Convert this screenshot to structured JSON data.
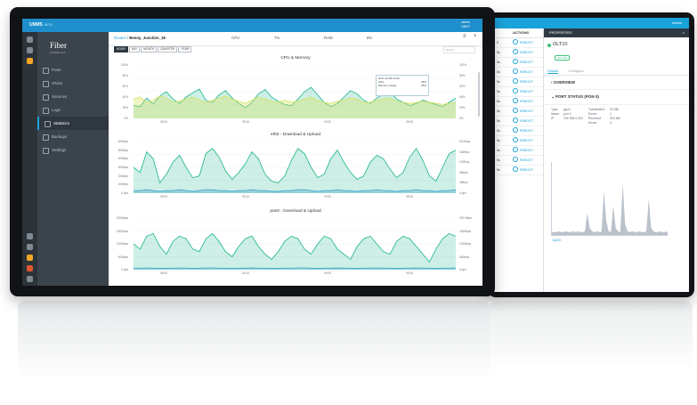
{
  "back": {
    "topbar": {
      "left": "",
      "right_user": "admin"
    },
    "table_header": "ACTIONS",
    "rows": [
      {
        "num": "5",
        "action": "REBOOT"
      },
      {
        "num": "5s",
        "action": "REBOOT"
      },
      {
        "num": "5s",
        "action": "REBOOT"
      },
      {
        "num": "5s",
        "action": "REBOOT"
      },
      {
        "num": "5s",
        "action": "REBOOT"
      },
      {
        "num": "5s",
        "action": "REBOOT"
      },
      {
        "num": "5s",
        "action": "REBOOT"
      },
      {
        "num": "5s",
        "action": "REBOOT"
      },
      {
        "num": "5s",
        "action": "REBOOT"
      },
      {
        "num": "5s",
        "action": "REBOOT"
      },
      {
        "num": "5s",
        "action": "REBOOT"
      },
      {
        "num": "5s",
        "action": "REBOOT"
      },
      {
        "num": "5s",
        "action": "REBOOT"
      },
      {
        "num": "5s",
        "action": "REBOOT"
      }
    ],
    "panel": {
      "title": "PROPERTIES",
      "close": "×",
      "device_name": "OLT10",
      "status_badge": "ACTIVE",
      "tabs": [
        "Details",
        "Configure"
      ],
      "overview": "OVERVIEW",
      "port_status": "PORT STATUS (PON 0)",
      "kv": [
        [
          "Type",
          "gpon",
          "Transmitted",
          "32 MB"
        ],
        [
          "Name",
          "pon 0",
          "Errors",
          "1"
        ],
        [
          "IP",
          "192.168.0.200",
          "Received",
          "316 MB"
        ],
        [
          "",
          "",
          "Errors",
          "3"
        ]
      ],
      "back_link": "BACK"
    }
  },
  "front": {
    "topbar": {
      "brand": "UNMS",
      "brand_sub": "BETA",
      "user_line1": "admin",
      "user_line2": "UBNT"
    },
    "logo": {
      "main": "Fiber",
      "sub": "UFIBER OLT"
    },
    "nav": [
      {
        "label": "Ports",
        "active": false
      },
      {
        "label": "ONUs",
        "active": false
      },
      {
        "label": "Services",
        "active": false
      },
      {
        "label": "Logs",
        "active": false
      },
      {
        "label": "Statistics",
        "active": true
      },
      {
        "label": "Backups",
        "active": false
      },
      {
        "label": "Settings",
        "active": false
      }
    ],
    "header": {
      "crumb_home": "Routes",
      "crumb_sep": " / ",
      "crumb_device": "Benny_Junction_18",
      "cpu_label": "CPU",
      "cpu_value": "7%",
      "ram_label": "RAM",
      "ram_value": "8%",
      "icons": [
        "≡",
        "×"
      ]
    },
    "periods": [
      {
        "label": "HOUR",
        "active": true
      },
      {
        "label": "DAY",
        "active": false
      },
      {
        "label": "MONTH",
        "active": false
      },
      {
        "label": "QUARTER",
        "active": false
      },
      {
        "label": "YEAR",
        "active": false
      }
    ],
    "search_placeholder": "Search",
    "tooltip": {
      "time": "2017-12-08 10:40",
      "rows": [
        [
          "CPU",
          "25%"
        ],
        [
          "Memory Usage",
          "26%"
        ]
      ]
    }
  },
  "chart_data": [
    {
      "type": "area",
      "title": "CPU & Memory",
      "x_ticks": [
        "09:00",
        "09:15",
        "09:30",
        "09:45"
      ],
      "y_left_ticks": [
        "100%",
        "80%",
        "60%",
        "40%",
        "20%",
        "0%"
      ],
      "y_right_ticks": [
        "100%",
        "80%",
        "60%",
        "40%",
        "20%",
        "0%"
      ],
      "ylim": [
        0,
        100
      ],
      "series": [
        {
          "name": "CPU",
          "color": "#1ab48c",
          "values": [
            24,
            22,
            38,
            27,
            42,
            50,
            36,
            28,
            40,
            48,
            55,
            34,
            30,
            44,
            52,
            38,
            28,
            20,
            30,
            46,
            54,
            40,
            32,
            26,
            24,
            36,
            50,
            58,
            44,
            30,
            22,
            28,
            40,
            52,
            46,
            34,
            28,
            38,
            46,
            50,
            36,
            30,
            24,
            28,
            34,
            30,
            26,
            22,
            30,
            38
          ]
        },
        {
          "name": "Memory Usage",
          "color": "#d8e35a",
          "values": [
            36,
            40,
            30,
            34,
            42,
            38,
            30,
            32,
            36,
            40,
            34,
            30,
            34,
            38,
            42,
            36,
            32,
            28,
            34,
            40,
            36,
            32,
            30,
            34,
            30,
            32,
            36,
            40,
            34,
            30,
            28,
            32,
            34,
            38,
            36,
            30,
            30,
            34,
            36,
            38,
            32,
            30,
            28,
            30,
            32,
            30,
            28,
            26,
            28,
            30
          ]
        }
      ]
    },
    {
      "type": "area",
      "title": "eth0 - Download & Upload",
      "x_ticks": [
        "09:00",
        "09:15",
        "09:30",
        "09:45"
      ],
      "y_left_ticks": [
        "60Mbps",
        "50Mbps",
        "40Mbps",
        "30Mbps",
        "20Mbps",
        "10Mbps",
        "0 bps"
      ],
      "y_right_ticks": [
        "20 Mbps",
        "16Mbps",
        "12Mbps",
        "8Mbps",
        "4Mbps",
        "0 bps"
      ],
      "ylim": [
        0,
        60
      ],
      "series": [
        {
          "name": "Download",
          "color": "#1ab48c",
          "values": [
            30,
            24,
            48,
            40,
            12,
            22,
            36,
            44,
            30,
            18,
            20,
            46,
            52,
            42,
            26,
            16,
            24,
            34,
            48,
            40,
            22,
            14,
            12,
            20,
            38,
            52,
            46,
            30,
            18,
            22,
            40,
            50,
            36,
            24,
            16,
            20,
            36,
            44,
            40,
            28,
            18,
            24,
            42,
            52,
            38,
            20,
            14,
            30,
            46,
            50
          ]
        },
        {
          "name": "Upload",
          "color": "#36a0c8",
          "values": [
            3,
            3,
            4,
            3,
            2,
            3,
            3,
            4,
            3,
            2,
            3,
            4,
            4,
            3,
            3,
            2,
            3,
            3,
            4,
            3,
            3,
            2,
            2,
            3,
            3,
            4,
            4,
            3,
            2,
            3,
            3,
            4,
            3,
            3,
            2,
            3,
            3,
            4,
            3,
            3,
            2,
            3,
            3,
            4,
            3,
            3,
            2,
            3,
            3,
            4
          ]
        }
      ]
    },
    {
      "type": "area",
      "title": "pon0 - Download & Upload",
      "x_ticks": [
        "09:00",
        "09:15",
        "09:30",
        "09:45"
      ],
      "y_left_ticks": [
        "200Mbps",
        "150Mbps",
        "100Mbps",
        "50Mbps",
        "0 bps"
      ],
      "y_right_ticks": [
        "200 Mbps",
        "150Mbps",
        "100Mbps",
        "50Mbps",
        "0 bps"
      ],
      "ylim": [
        0,
        200
      ],
      "series": [
        {
          "name": "Download",
          "color": "#1ab48c",
          "values": [
            100,
            80,
            130,
            140,
            90,
            60,
            110,
            130,
            120,
            80,
            70,
            120,
            140,
            110,
            70,
            50,
            90,
            120,
            130,
            90,
            60,
            40,
            70,
            110,
            130,
            120,
            80,
            60,
            100,
            130,
            120,
            80,
            60,
            40,
            90,
            120,
            130,
            100,
            70,
            60,
            110,
            130,
            120,
            90,
            60,
            30,
            80,
            120,
            140,
            130
          ]
        },
        {
          "name": "Upload",
          "color": "#36a0c8",
          "values": [
            6,
            6,
            7,
            6,
            5,
            6,
            6,
            7,
            6,
            5,
            6,
            7,
            7,
            6,
            6,
            5,
            6,
            6,
            7,
            6,
            6,
            5,
            5,
            6,
            6,
            7,
            7,
            6,
            5,
            6,
            6,
            7,
            6,
            6,
            5,
            6,
            6,
            7,
            6,
            6,
            5,
            6,
            6,
            7,
            6,
            6,
            5,
            6,
            6,
            7
          ]
        }
      ]
    },
    {
      "type": "area",
      "title": "",
      "x_ticks": [],
      "ylim": [
        0,
        100
      ],
      "series": [
        {
          "name": "",
          "color": "#8e9aa6",
          "values": [
            4,
            4,
            4,
            5,
            4,
            4,
            5,
            4,
            4,
            5,
            4,
            5,
            4,
            4,
            5,
            30,
            10,
            5,
            4,
            5,
            4,
            4,
            60,
            20,
            5,
            4,
            40,
            10,
            5,
            4,
            70,
            15,
            5,
            4,
            5,
            4,
            4,
            5,
            4,
            4,
            5,
            50,
            10,
            5,
            4,
            4,
            5,
            4,
            4,
            5
          ]
        }
      ]
    }
  ]
}
